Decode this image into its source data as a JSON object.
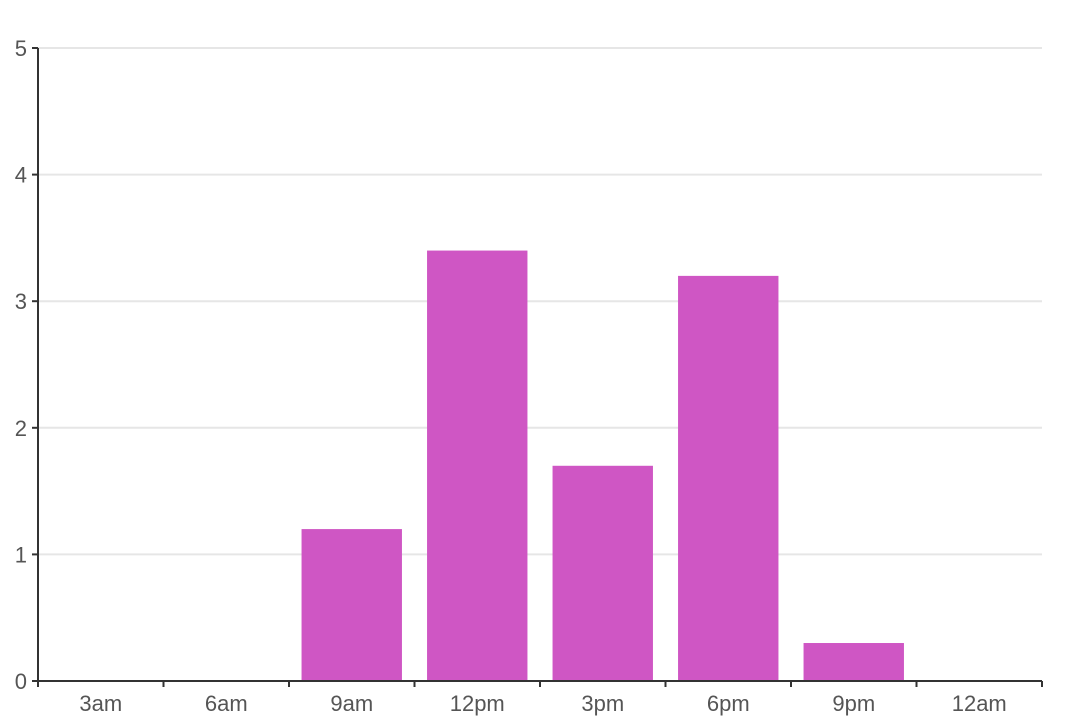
{
  "chart_data": {
    "type": "bar",
    "title": "",
    "xlabel": "",
    "ylabel": "",
    "categories": [
      "3am",
      "6am",
      "9am",
      "12pm",
      "3pm",
      "6pm",
      "9pm",
      "12am"
    ],
    "values": [
      0,
      0,
      1.2,
      3.4,
      1.7,
      3.2,
      0.3,
      0
    ],
    "ylim": [
      0,
      5
    ],
    "yticks": [
      "0",
      "1",
      "2",
      "3",
      "4",
      "5"
    ],
    "grid": true,
    "legend": "none",
    "colors": {
      "bar": "#cf56c4",
      "grid": "#e6e6e6",
      "axis": "#333333",
      "text": "#555555"
    }
  }
}
